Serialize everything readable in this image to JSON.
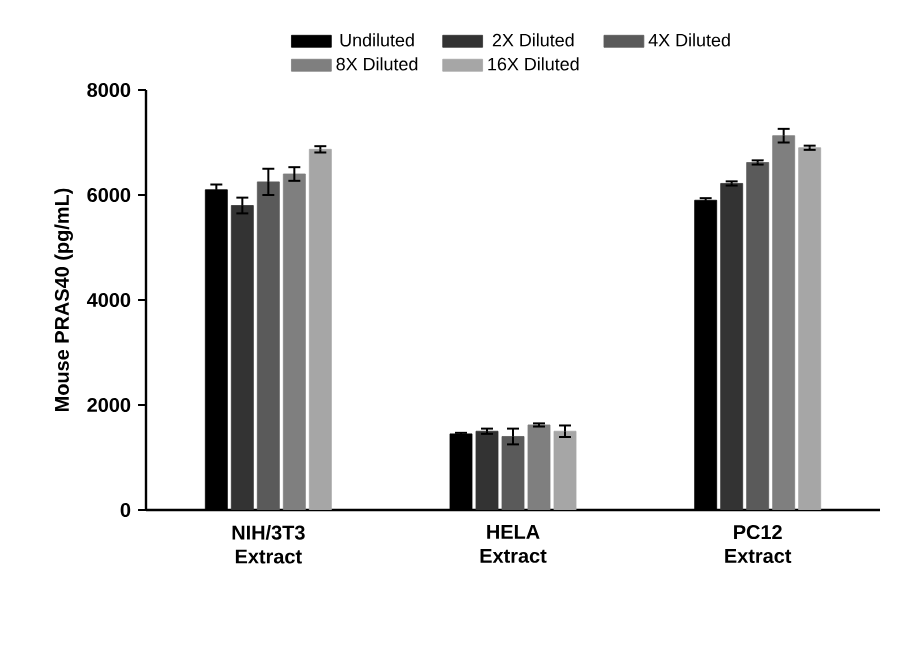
{
  "chart_data": {
    "type": "bar",
    "ylabel": "Mouse PRAS40 (pg/mL)",
    "categories": [
      "NIH/3T3 Extract",
      "HELA Extract",
      "PC12 Extract"
    ],
    "series": [
      {
        "name": "Undiluted",
        "color": "#000000",
        "values": [
          6100,
          1450,
          5900
        ],
        "errors": [
          100,
          20,
          40
        ]
      },
      {
        "name": "2X Diluted",
        "color": "#333333",
        "values": [
          5800,
          1500,
          6220
        ],
        "errors": [
          150,
          50,
          40
        ]
      },
      {
        "name": "4X Diluted",
        "color": "#5a5a5a",
        "values": [
          6250,
          1400,
          6620
        ],
        "errors": [
          250,
          150,
          40
        ]
      },
      {
        "name": "8X Diluted",
        "color": "#7f7f7f",
        "values": [
          6400,
          1620,
          7130
        ],
        "errors": [
          130,
          30,
          130
        ]
      },
      {
        "name": "16X Diluted",
        "color": "#a6a6a6",
        "values": [
          6870,
          1500,
          6900
        ],
        "errors": [
          60,
          110,
          40
        ]
      }
    ],
    "ylim": [
      0,
      8000
    ],
    "yticks": [
      0,
      2000,
      4000,
      6000,
      8000
    ],
    "grid": false,
    "legend": "top"
  }
}
